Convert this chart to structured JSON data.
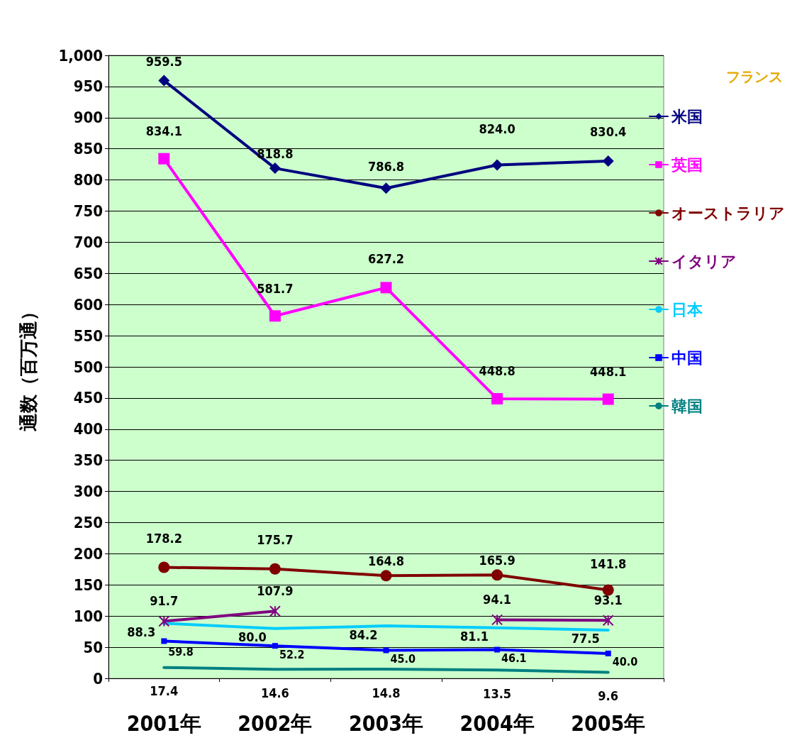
{
  "chart_data": {
    "type": "line",
    "ylabel": "通数（百万通）",
    "categories": [
      "2001年",
      "2002年",
      "2003年",
      "2004年",
      "2005年"
    ],
    "series": [
      {
        "name": "米国",
        "color": "#000080",
        "marker": "diamond",
        "values": [
          959.5,
          818.8,
          786.8,
          824.0,
          830.4
        ],
        "value_labels": [
          "959.5",
          "818.8",
          "786.8",
          "824.0",
          "830.4"
        ]
      },
      {
        "name": "英国",
        "color": "#ff00ff",
        "marker": "square",
        "values": [
          834.1,
          581.7,
          627.2,
          448.8,
          448.1
        ],
        "value_labels": [
          "834.1",
          "581.7",
          "627.2",
          "448.8",
          "448.1"
        ]
      },
      {
        "name": "オーストラリア",
        "color": "#800000",
        "marker": "circle",
        "values": [
          178.2,
          175.7,
          164.8,
          165.9,
          141.8
        ],
        "value_labels": [
          "178.2",
          "175.7",
          "164.8",
          "165.9",
          "141.8"
        ]
      },
      {
        "name": "イタリア",
        "color": "#800080",
        "marker": "cross",
        "values": [
          91.7,
          107.9,
          null,
          94.1,
          93.1
        ],
        "value_labels": [
          "91.7",
          "107.9",
          null,
          "94.1",
          "93.1"
        ]
      },
      {
        "name": "日本",
        "color": "#00ccff",
        "marker": "none",
        "values": [
          88.3,
          80.0,
          84.2,
          81.1,
          77.5
        ],
        "value_labels": [
          "88.3",
          "80.0",
          "84.2",
          "81.1",
          "77.5"
        ]
      },
      {
        "name": "中国",
        "color": "#0000ff",
        "marker": "square",
        "values": [
          59.8,
          52.2,
          45.0,
          46.1,
          40.0
        ],
        "value_labels": [
          "59.8",
          "52.2",
          "45.0",
          "46.1",
          "40.0"
        ]
      },
      {
        "name": "韓国",
        "color": "#008080",
        "marker": "none",
        "values": [
          17.4,
          14.6,
          14.8,
          13.5,
          9.6
        ],
        "value_labels": [
          "17.4",
          "14.6",
          "14.8",
          "13.5",
          "9.6"
        ]
      }
    ],
    "ylim": [
      0,
      1000
    ],
    "yticks": [
      0,
      50,
      100,
      150,
      200,
      250,
      300,
      350,
      400,
      450,
      500,
      550,
      600,
      650,
      700,
      750,
      800,
      850,
      900,
      950,
      {
        "value": 1000,
        "label": "1,000"
      }
    ],
    "grid": "y",
    "legend": "right",
    "data_labels": true,
    "annotations": [
      "フランス"
    ]
  }
}
